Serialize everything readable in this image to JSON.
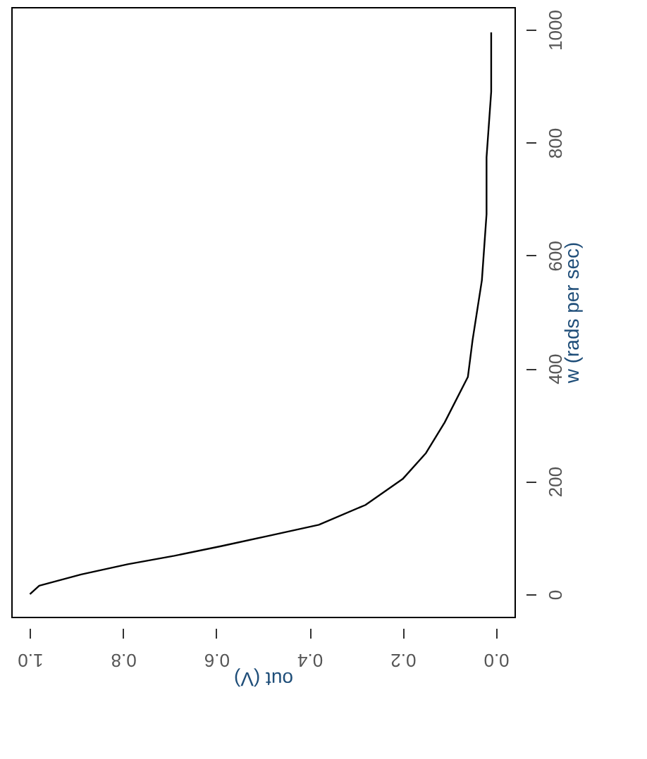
{
  "chart_data": {
    "type": "line",
    "xlabel": "out (V)",
    "ylabel": "w (rads per sec)",
    "x": [
      1,
      0.98,
      0.89,
      0.79,
      0.69,
      0.59,
      0.49,
      0.38,
      0.28,
      0.2,
      0.15,
      0.11,
      0.06,
      0.05,
      0.03,
      0.02,
      0.02,
      0.01,
      0.01
    ],
    "series": [
      {
        "color": "#000000",
        "values": [
          0,
          15,
          35,
          53,
          68,
          85,
          103,
          123,
          158,
          204,
          250,
          304,
          385,
          450,
          556,
          673,
          774,
          890,
          995
        ]
      }
    ],
    "xlim": [
      1.04,
      -0.04
    ],
    "ylim": [
      -40,
      1040
    ],
    "xticks": [
      {
        "value": 1,
        "label": "1.0"
      },
      {
        "value": 0.8,
        "label": "0.8"
      },
      {
        "value": 0.6,
        "label": "0.6"
      },
      {
        "value": 0.4,
        "label": "0.4"
      },
      {
        "value": 0.2,
        "label": "0.2"
      },
      {
        "value": 0,
        "label": "0.0"
      }
    ],
    "yticks": [
      0,
      200,
      400,
      600,
      800,
      1000
    ],
    "grid": false,
    "marker": "none",
    "line_style": "solid"
  }
}
